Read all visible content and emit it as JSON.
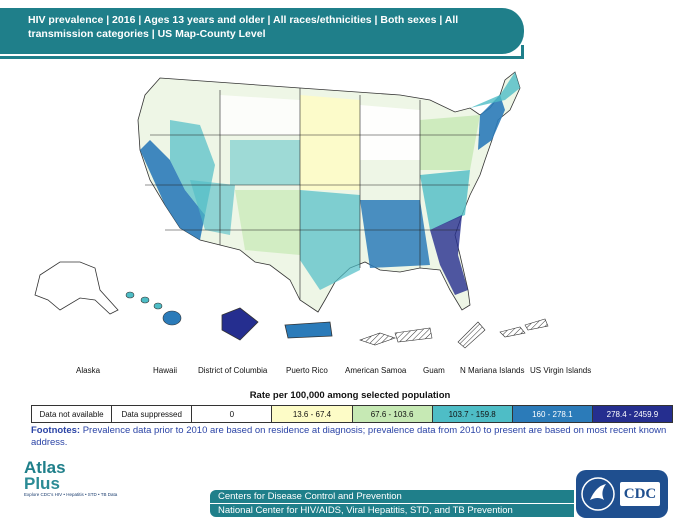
{
  "header": {
    "title": "HIV prevalence | 2016 | Ages 13 years and older | All races/ethnicities | Both sexes | All transmission categories | US Map-County Level"
  },
  "territories": [
    "Alaska",
    "Hawaii",
    "District of Columbia",
    "Puerto Rico",
    "American Samoa",
    "Guam",
    "N Mariana Islands",
    "US Virgin Islands"
  ],
  "legend": {
    "title": "Rate per 100,000 among selected population",
    "items": [
      {
        "label": "Data not available",
        "color": "#ffffff"
      },
      {
        "label": "Data suppressed",
        "color": "#ffffff"
      },
      {
        "label": "0",
        "color": "#ffffff"
      },
      {
        "label": "13.6 - 67.4",
        "color": "#fdfcc7"
      },
      {
        "label": "67.6 - 103.6",
        "color": "#c6e9b4"
      },
      {
        "label": "103.7 - 159.8",
        "color": "#4ebdc6"
      },
      {
        "label": "160 - 278.1",
        "color": "#2b7bb9"
      },
      {
        "label": "278.4 - 2459.9",
        "color": "#252e8f"
      }
    ]
  },
  "footnote": {
    "label": "Footnotes:",
    "text": "Prevalence data prior to 2010 are based on residence at diagnosis; prevalence data from 2010 to present are based on most recent known address."
  },
  "logo": {
    "line1": "Atlas",
    "line2": "Plus",
    "tagline": "Explore CDC's HIV • Hepatitis • STD • TB Data"
  },
  "footer": {
    "line1": "Centers for Disease Control and Prevention",
    "line2": "National Center for HIV/AIDS, Viral Hepatitis, STD, and TB Prevention",
    "cdc": "CDC"
  }
}
